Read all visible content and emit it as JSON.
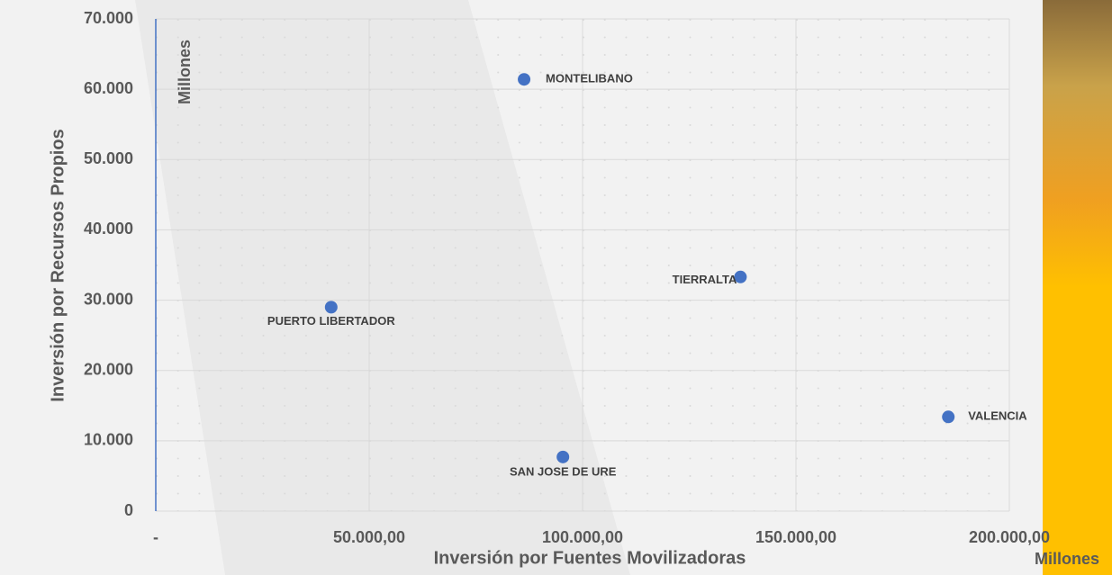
{
  "chart_data": {
    "type": "scatter",
    "xlabel": "Inversión por Fuentes Movilizadoras",
    "ylabel": "Inversión por Recursos Propios",
    "x_unit": "Millones",
    "y_unit": "Millones",
    "labels": [
      "MONTELIBANO",
      "TIERRALTA",
      "PUERTO LIBERTADOR",
      "VALENCIA",
      "SAN JOSE DE URE"
    ],
    "x": [
      86300,
      137000,
      41100,
      185700,
      95400
    ],
    "series": [
      {
        "color": "#4472c4",
        "values": [
          61400,
          33300,
          29000,
          13400,
          7700
        ]
      }
    ],
    "xlim": [
      0,
      200000
    ],
    "xticks": [
      {
        "value": 0,
        "label": "-"
      },
      {
        "value": 50000,
        "label": "50.000,00"
      },
      {
        "value": 100000,
        "label": "100.000,00"
      },
      {
        "value": 150000,
        "label": "150.000,00"
      },
      {
        "value": 200000,
        "label": "200.000,00"
      }
    ],
    "ylim": [
      0,
      70000
    ],
    "yticks": [
      0,
      {
        "value": 10000,
        "label": "10.000"
      },
      {
        "value": 20000,
        "label": "20.000"
      },
      {
        "value": 30000,
        "label": "30.000"
      },
      {
        "value": 40000,
        "label": "40.000"
      },
      {
        "value": 50000,
        "label": "50.000"
      },
      {
        "value": 60000,
        "label": "60.000"
      },
      {
        "value": 70000,
        "label": "70.000"
      }
    ],
    "grid": true
  }
}
